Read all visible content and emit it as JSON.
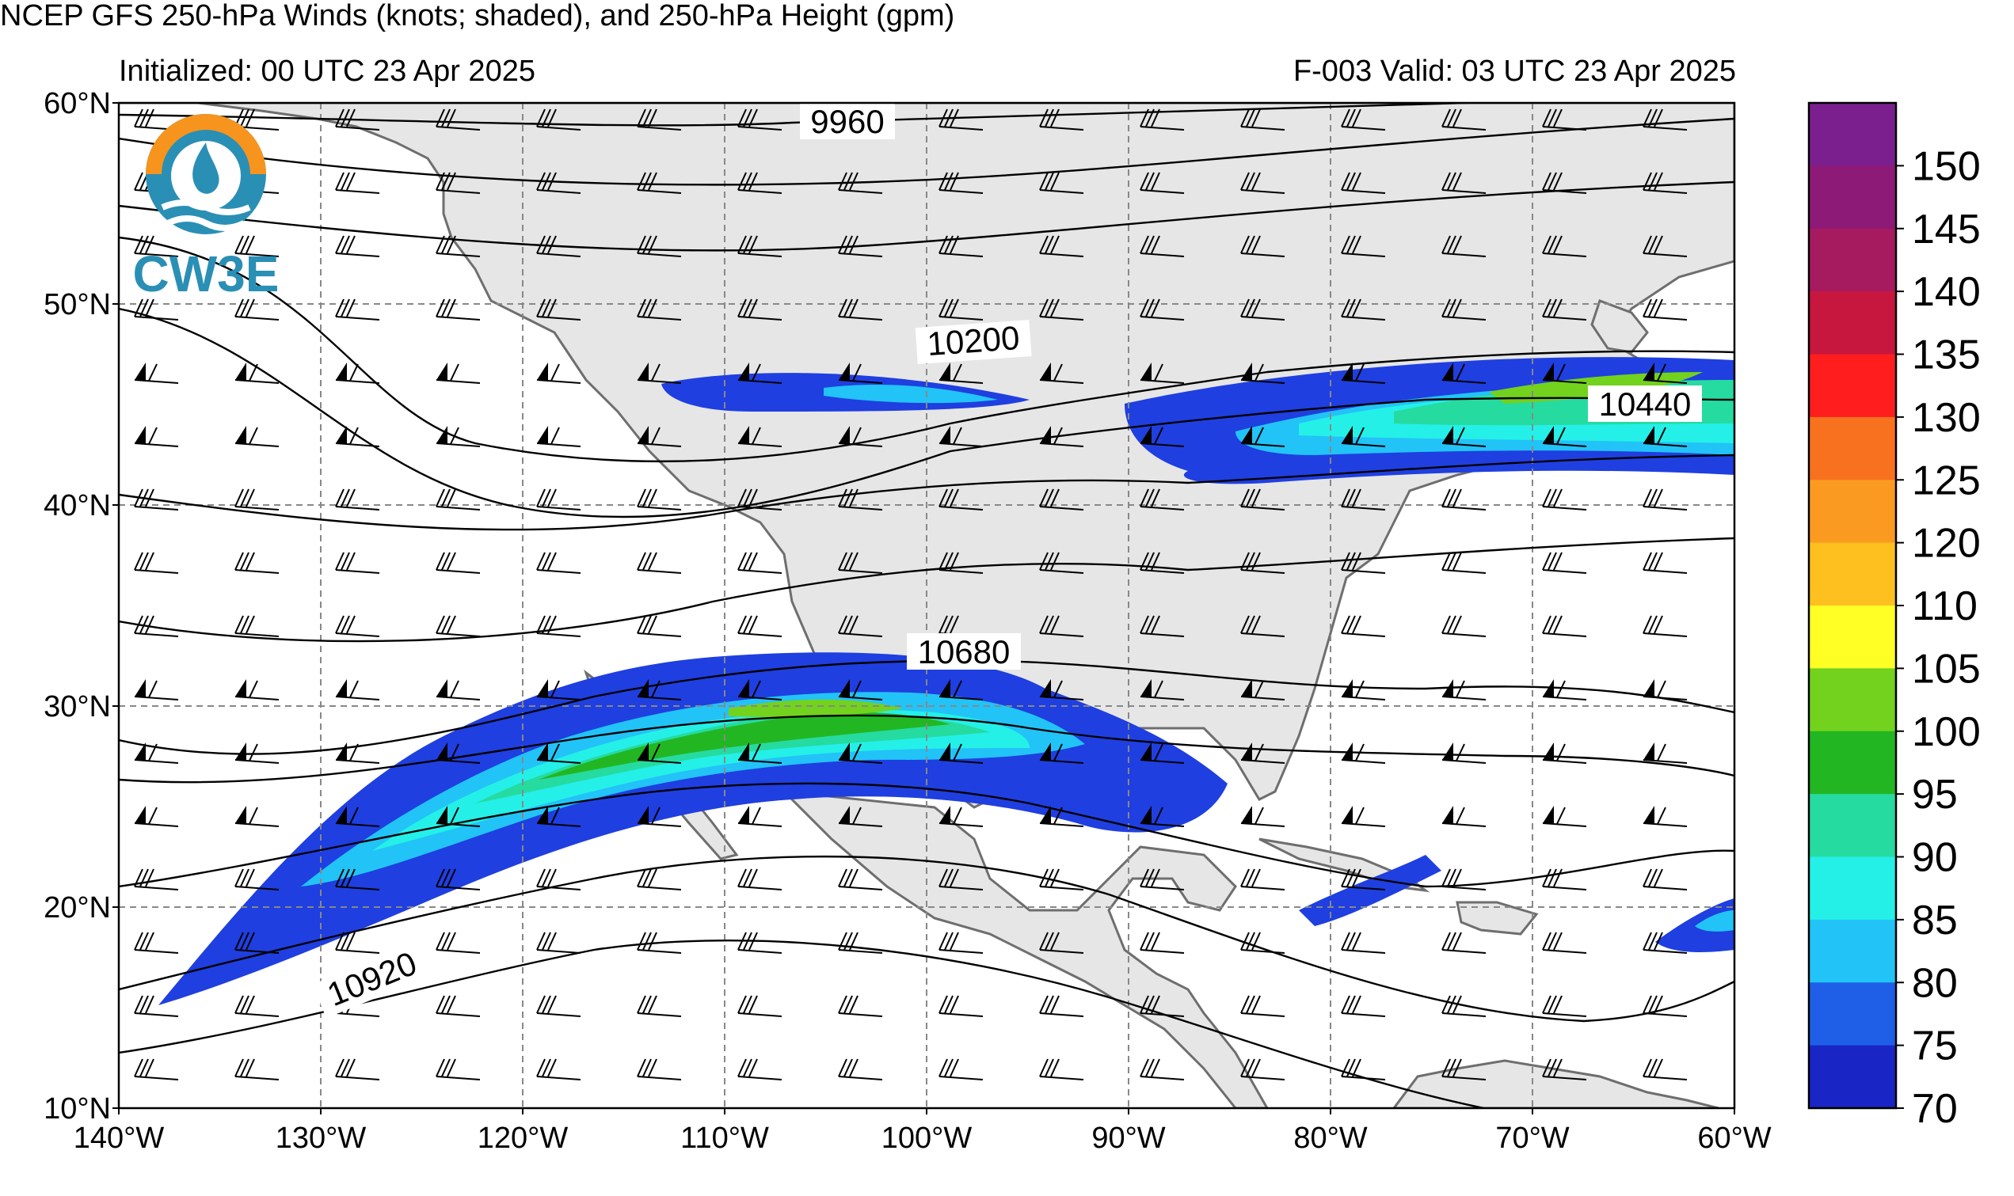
{
  "header": {
    "title": "NCEP GFS 250-hPa Winds (knots; shaded), and 250-hPa Height (gpm)",
    "initialized": "Initialized: 00 UTC 23 Apr 2025",
    "valid": "F-003  Valid: 03 UTC 23 Apr 2025"
  },
  "logo": {
    "text": "CW3E"
  },
  "map": {
    "lat_ticks": [
      "60°N",
      "50°N",
      "40°N",
      "30°N",
      "20°N",
      "10°N"
    ],
    "lon_ticks": [
      "140°W",
      "130°W",
      "120°W",
      "110°W",
      "100°W",
      "90°W",
      "80°W",
      "70°W",
      "60°W"
    ],
    "lat_range": [
      10,
      60
    ],
    "lon_range": [
      -140,
      -60
    ],
    "gridlines": true,
    "contour_labels": [
      "9960",
      "10200",
      "10440",
      "10680",
      "10920"
    ]
  },
  "colorbar": {
    "labels": [
      "150",
      "145",
      "140",
      "135",
      "130",
      "125",
      "120",
      "110",
      "105",
      "100",
      "95",
      "90",
      "85",
      "80",
      "75",
      "70"
    ],
    "colors": [
      "#7b1f8f",
      "#8e1a78",
      "#a61a5f",
      "#c8173f",
      "#ff1d1d",
      "#f7711f",
      "#fb9a20",
      "#fdc01f",
      "#ffff25",
      "#72d21d",
      "#22b722",
      "#26dba0",
      "#24f0e8",
      "#22c3f7",
      "#1f5fe8",
      "#1a25c5"
    ]
  },
  "colors": {
    "land": "#e6e6e6",
    "coast": "#6e6e6e",
    "jet_blue": "#1f3fe0",
    "jet_cyan": "#22c3f7",
    "jet_green": "#22b722",
    "jet_lime": "#72d21d"
  }
}
